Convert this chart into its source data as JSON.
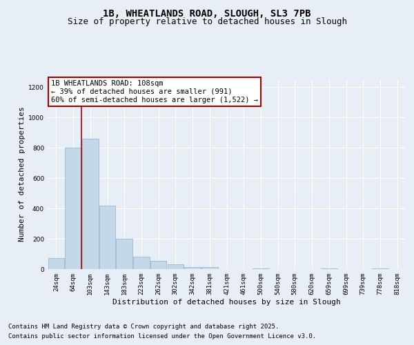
{
  "title_line1": "1B, WHEATLANDS ROAD, SLOUGH, SL3 7PB",
  "title_line2": "Size of property relative to detached houses in Slough",
  "xlabel": "Distribution of detached houses by size in Slough",
  "ylabel": "Number of detached properties",
  "footnote1": "Contains HM Land Registry data © Crown copyright and database right 2025.",
  "footnote2": "Contains public sector information licensed under the Open Government Licence v3.0.",
  "annotation_line1": "1B WHEATLANDS ROAD: 108sqm",
  "annotation_line2": "← 39% of detached houses are smaller (991)",
  "annotation_line3": "60% of semi-detached houses are larger (1,522) →",
  "bar_labels": [
    "24sqm",
    "64sqm",
    "103sqm",
    "143sqm",
    "183sqm",
    "223sqm",
    "262sqm",
    "302sqm",
    "342sqm",
    "381sqm",
    "421sqm",
    "461sqm",
    "500sqm",
    "540sqm",
    "580sqm",
    "620sqm",
    "659sqm",
    "699sqm",
    "739sqm",
    "778sqm",
    "818sqm"
  ],
  "bar_values": [
    75,
    800,
    860,
    420,
    200,
    80,
    55,
    30,
    15,
    15,
    0,
    0,
    5,
    0,
    0,
    0,
    5,
    0,
    0,
    5,
    0
  ],
  "bar_color": "#c5d8ea",
  "bar_edge_color": "#8ab0cc",
  "vline_index": 2,
  "vline_color": "#aa0000",
  "ylim": [
    0,
    1250
  ],
  "yticks": [
    0,
    200,
    400,
    600,
    800,
    1000,
    1200
  ],
  "bg_color": "#e8eef5",
  "plot_bg_color": "#e8eef5",
  "grid_color": "#ffffff",
  "annotation_box_edge_color": "#aa0000",
  "title_fontsize": 10,
  "subtitle_fontsize": 9,
  "tick_fontsize": 6.5,
  "ylabel_fontsize": 8,
  "xlabel_fontsize": 8,
  "annotation_fontsize": 7.5,
  "footnote_fontsize": 6.5
}
